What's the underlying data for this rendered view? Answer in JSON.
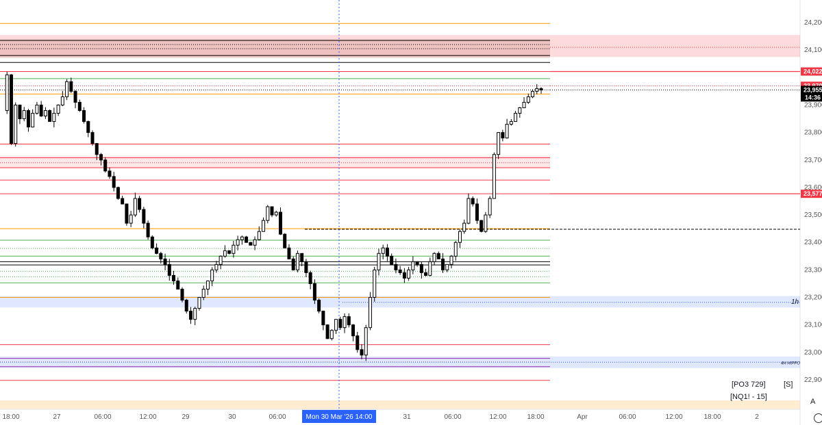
{
  "chart_data": {
    "type": "candlestick",
    "instrument": "NQ1!",
    "timeframe": "15",
    "ylim": [
      22860,
      24240
    ],
    "y_ticks": [
      {
        "value": 24200,
        "label": "24,200"
      },
      {
        "value": 24100,
        "label": "24,100"
      },
      {
        "value": 23900,
        "label": "23,900"
      },
      {
        "value": 23800,
        "label": "23,800"
      },
      {
        "value": 23700,
        "label": "23,700"
      },
      {
        "value": 23600,
        "label": "23,600"
      },
      {
        "value": 23500,
        "label": "23,500"
      },
      {
        "value": 23400,
        "label": "23,400"
      },
      {
        "value": 23300,
        "label": "23,300"
      },
      {
        "value": 23200,
        "label": "23,200"
      },
      {
        "value": 23100,
        "label": "23,100"
      },
      {
        "value": 23000,
        "label": "23,000"
      },
      {
        "value": 22900,
        "label": "22,900"
      }
    ],
    "x_ticks": [
      "18:00",
      "27",
      "06:00",
      "12:00",
      "29",
      "30",
      "06:00",
      "31",
      "06:00",
      "12:00",
      "18:00",
      "Apr",
      "06:00",
      "12:00",
      "18:00",
      "2"
    ],
    "crosshair_time_label": "Mon 30 Mar '26   14:00",
    "price_tags": [
      {
        "value": 24022,
        "label": "24,022",
        "color": "#f23645"
      },
      {
        "value": 23970,
        "label": "23,970",
        "color": "#f23645"
      },
      {
        "value": 23955,
        "label": "23,955",
        "color": "#000000"
      },
      {
        "value": 23577,
        "label": "23,577",
        "color": "#f23645"
      }
    ],
    "countdown": "14:36",
    "horizontal_levels": [
      {
        "value": 24197,
        "color": "#ff9800",
        "style": "solid"
      },
      {
        "value": 24135,
        "color": "#000000",
        "style": "solid"
      },
      {
        "value": 24120,
        "color": "#000000",
        "style": "dotted"
      },
      {
        "value": 24105,
        "color": "#000000",
        "style": "dotted"
      },
      {
        "value": 24080,
        "color": "#000000",
        "style": "solid"
      },
      {
        "value": 24055,
        "color": "#000000",
        "style": "solid"
      },
      {
        "value": 24022,
        "color": "#f23645",
        "style": "solid"
      },
      {
        "value": 23996,
        "color": "#4caf50",
        "style": "solid"
      },
      {
        "value": 23970,
        "color": "#f23645",
        "style": "dotted"
      },
      {
        "value": 23955,
        "color": "#000000",
        "style": "dotted"
      },
      {
        "value": 23940,
        "color": "#ff9800",
        "style": "solid"
      },
      {
        "value": 23758,
        "color": "#f23645",
        "style": "solid"
      },
      {
        "value": 23708,
        "color": "#f23645",
        "style": "solid"
      },
      {
        "value": 23690,
        "color": "#f23645",
        "style": "dotted"
      },
      {
        "value": 23672,
        "color": "#f23645",
        "style": "solid"
      },
      {
        "value": 23627,
        "color": "#f23645",
        "style": "solid"
      },
      {
        "value": 23577,
        "color": "#f23645",
        "style": "solid"
      },
      {
        "value": 23450,
        "color": "#ff9800",
        "style": "solid"
      },
      {
        "value": 23408,
        "color": "#4caf50",
        "style": "solid"
      },
      {
        "value": 23378,
        "color": "#4caf50",
        "style": "dotted"
      },
      {
        "value": 23350,
        "color": "#4caf50",
        "style": "solid"
      },
      {
        "value": 23330,
        "color": "#000000",
        "style": "solid"
      },
      {
        "value": 23318,
        "color": "#000000",
        "style": "solid"
      },
      {
        "value": 23295,
        "color": "#4caf50",
        "style": "dotted"
      },
      {
        "value": 23275,
        "color": "#4caf50",
        "style": "dotted"
      },
      {
        "value": 23253,
        "color": "#4caf50",
        "style": "solid"
      },
      {
        "value": 23200,
        "color": "#ff9800",
        "style": "solid"
      },
      {
        "value": 23028,
        "color": "#f23645",
        "style": "solid"
      },
      {
        "value": 22978,
        "color": "#9c27b0",
        "style": "solid"
      },
      {
        "value": 22965,
        "color": "#f23645",
        "style": "dotted"
      },
      {
        "value": 22948,
        "color": "#9c27b0",
        "style": "solid"
      },
      {
        "value": 22898,
        "color": "#f23645",
        "style": "solid"
      }
    ],
    "zones": [
      {
        "top": 24140,
        "bottom": 24070,
        "color": "#c8a99a",
        "opacity": 0.35,
        "extends_to_axis": false
      },
      {
        "top": 24155,
        "bottom": 24075,
        "color": "#f23645",
        "opacity": 0.18,
        "extends_to_axis": true
      },
      {
        "top": 23715,
        "bottom": 23670,
        "color": "#f23645",
        "opacity": 0.12,
        "extends_to_axis": false
      },
      {
        "top": 23205,
        "bottom": 23163,
        "color": "#2962ff",
        "opacity": 0.15,
        "extends_to_axis": true,
        "label": "1h"
      },
      {
        "top": 22985,
        "bottom": 22943,
        "color": "#2962ff",
        "opacity": 0.15,
        "extends_to_axis": true,
        "label": "4H HIPPO"
      }
    ],
    "dashed_level": {
      "value": 23448,
      "from_price_label": "23,448"
    },
    "series": [
      {
        "name": "NQ1!",
        "ohlc_path": [
          23880,
          24010,
          23760,
          23900,
          23850,
          23880,
          23820,
          23870,
          23900,
          23860,
          23880,
          23840,
          23870,
          23900,
          23930,
          23985,
          23950,
          23910,
          23880,
          23840,
          23800,
          23760,
          23720,
          23700,
          23660,
          23640,
          23600,
          23560,
          23540,
          23470,
          23500,
          23560,
          23520,
          23470,
          23420,
          23380,
          23360,
          23340,
          23320,
          23280,
          23260,
          23230,
          23190,
          23150,
          23120,
          23160,
          23200,
          23230,
          23260,
          23300,
          23320,
          23350,
          23370,
          23360,
          23390,
          23410,
          23420,
          23400,
          23390,
          23410,
          23440,
          23480,
          23530,
          23500,
          23510,
          23430,
          23380,
          23340,
          23300,
          23360,
          23330,
          23290,
          23250,
          23190,
          23150,
          23100,
          23050,
          23080,
          23120,
          23090,
          23130,
          23100,
          23060,
          23010,
          22990,
          23090,
          23200,
          23300,
          23360,
          23380,
          23350,
          23320,
          23300,
          23290,
          23270,
          23300,
          23330,
          23320,
          23290,
          23280,
          23330,
          23360,
          23340,
          23300,
          23320,
          23350,
          23400,
          23440,
          23470,
          23560,
          23540,
          23480,
          23440,
          23500,
          23560,
          23720,
          23800,
          23780,
          23830,
          23840,
          23870,
          23890,
          23910,
          23930,
          23950,
          23960,
          23955
        ]
      }
    ]
  },
  "overlay_labels": {
    "po3": "[PO3 729]",
    "s_button": "[S]",
    "symbol": "[NQ1! - 15]",
    "auto_scale": "A"
  }
}
